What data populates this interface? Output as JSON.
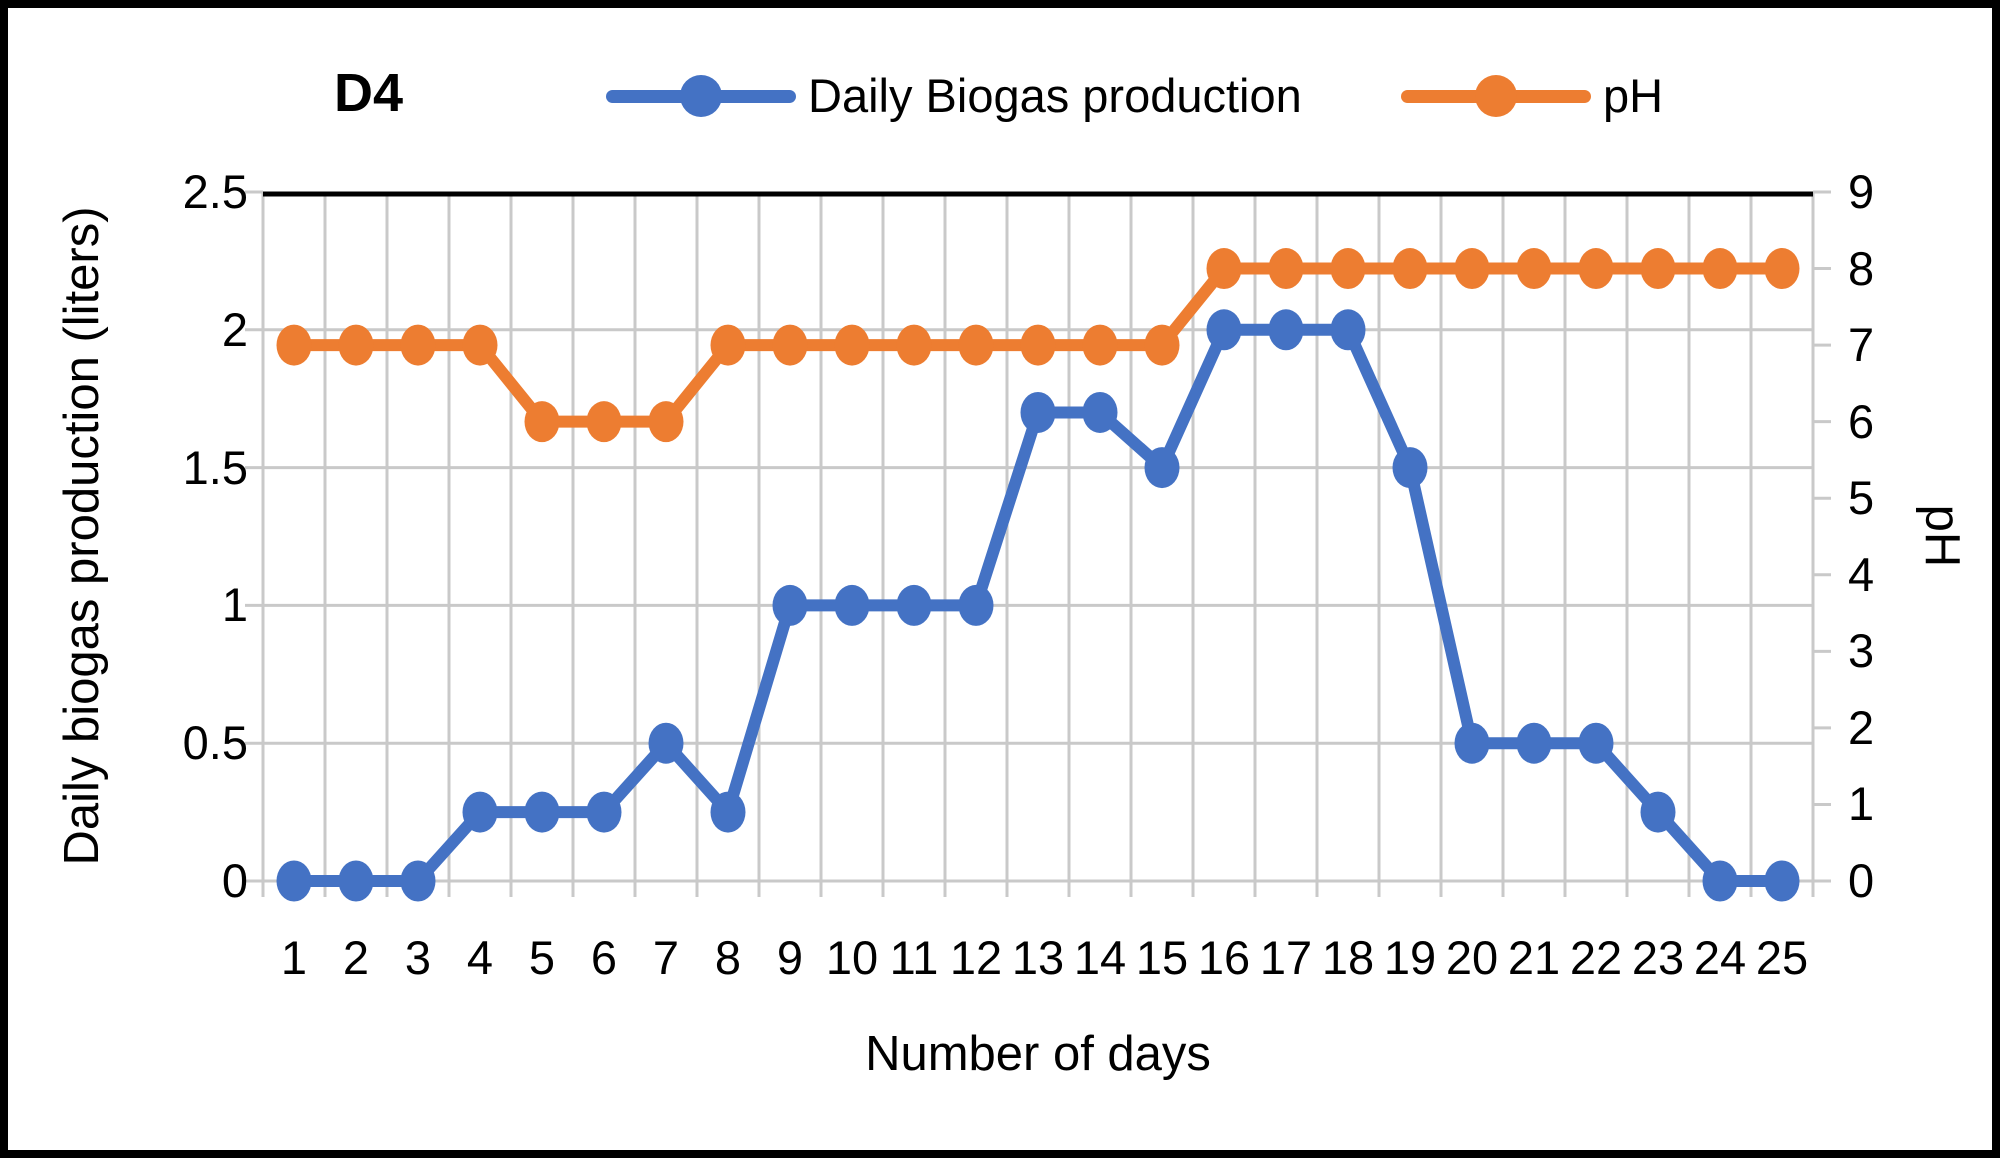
{
  "figure": {
    "panel_label": "D4",
    "background_color": "#FFFFFF",
    "frame_color": "#000000"
  },
  "legend": {
    "position": "top",
    "items": [
      {
        "label": "Daily Biogas production",
        "color": "#4472C4"
      },
      {
        "label": "pH",
        "color": "#ED7D31"
      }
    ]
  },
  "chart_data": {
    "type": "line",
    "x": [
      1,
      2,
      3,
      4,
      5,
      6,
      7,
      8,
      9,
      10,
      11,
      12,
      13,
      14,
      15,
      16,
      17,
      18,
      19,
      20,
      21,
      22,
      23,
      24,
      25
    ],
    "series": [
      {
        "name": "Daily Biogas production",
        "axis": "left",
        "color": "#4472C4",
        "values": [
          0,
          0,
          0,
          0.25,
          0.25,
          0.25,
          0.5,
          0.25,
          1,
          1,
          1,
          1,
          1.7,
          1.7,
          1.5,
          2,
          2,
          2,
          1.5,
          0.5,
          0.5,
          0.5,
          0.25,
          0,
          0
        ]
      },
      {
        "name": "pH",
        "axis": "right",
        "color": "#ED7D31",
        "values": [
          7,
          7,
          7,
          7,
          6,
          6,
          6,
          7,
          7,
          7,
          7,
          7,
          7,
          7,
          7,
          8,
          8,
          8,
          8,
          8,
          8,
          8,
          8,
          8,
          8
        ]
      }
    ],
    "title": "D4",
    "xlabel": "Number of days",
    "ylabel_left": "Daily biogas production (liters)",
    "ylabel_right": "pH",
    "ylim_left": [
      0,
      2.5
    ],
    "ytick_step_left": 0.5,
    "ylim_right": [
      0,
      9
    ],
    "ytick_step_right": 1,
    "grid": true,
    "grid_color": "#C9C9C9",
    "top_border_color": "#000000",
    "legend_position": "top"
  }
}
